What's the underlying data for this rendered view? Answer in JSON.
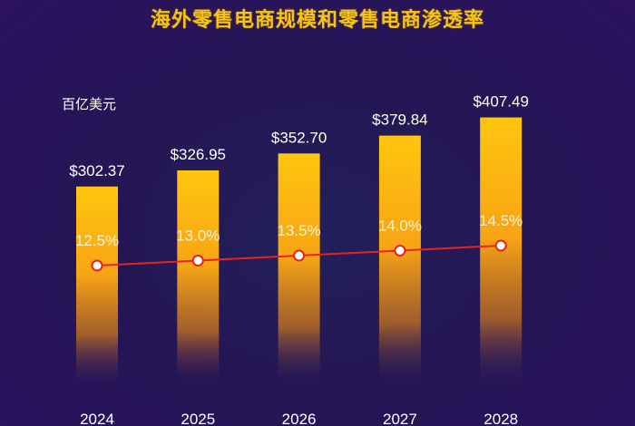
{
  "title": "海外零售电商规模和零售电商渗透率",
  "unit_label": "百亿美元",
  "chart_data": {
    "type": "bar+line",
    "title": "海外零售电商规模和零售电商渗透率",
    "ylabel": "百亿美元",
    "categories": [
      "2024",
      "2025",
      "2026",
      "2027",
      "2028"
    ],
    "series": [
      {
        "type": "bar",
        "values": [
          302.37,
          326.95,
          352.7,
          379.84,
          407.49
        ],
        "labels": [
          "$302.37",
          "$326.95",
          "$352.70",
          "$379.84",
          "$407.49"
        ]
      },
      {
        "type": "line",
        "values": [
          12.5,
          13.0,
          13.5,
          14.0,
          14.5
        ],
        "labels": [
          "12.5%",
          "13.0%",
          "13.5%",
          "14.0%",
          "14.5%"
        ]
      }
    ],
    "colors": {
      "bar_top": "#ffc20e",
      "bar_mid": "#f59a12",
      "line": "#e8231e",
      "marker_fill": "#ffffff",
      "title": "#f6c21c"
    },
    "grid": false,
    "legend": "none"
  }
}
